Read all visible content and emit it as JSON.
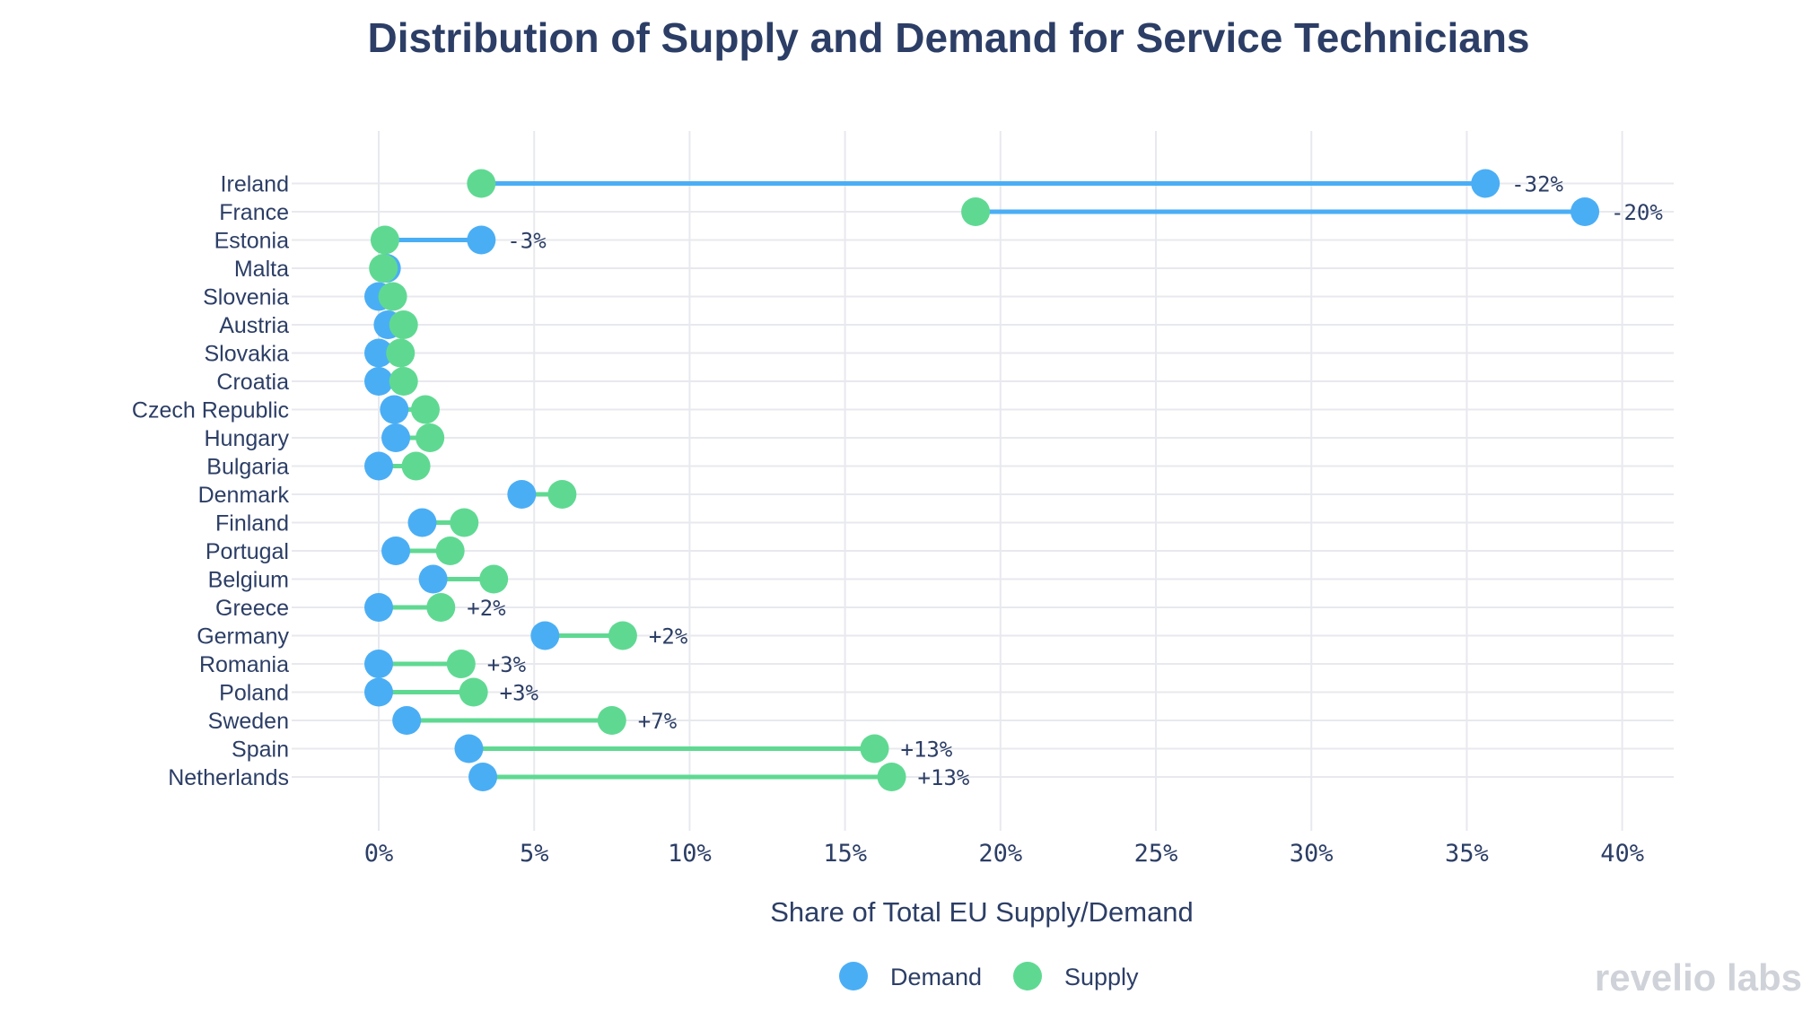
{
  "chart_data": {
    "type": "dumbbell",
    "title": "Distribution of Supply and Demand for Service Technicians",
    "xlabel": "Share of Total EU Supply/Demand",
    "ylabel": "",
    "xlim": [
      -2.5,
      42
    ],
    "xticks": [
      0,
      5,
      10,
      15,
      20,
      25,
      30,
      35,
      40
    ],
    "xtick_labels": [
      "0%",
      "5%",
      "10%",
      "15%",
      "20%",
      "25%",
      "30%",
      "35%",
      "40%"
    ],
    "grid": true,
    "legend_position": "bottom-center",
    "series": [
      {
        "name": "Demand",
        "color": "#4aaef5"
      },
      {
        "name": "Supply",
        "color": "#5fd992"
      }
    ],
    "categories": [
      "Ireland",
      "France",
      "Estonia",
      "Malta",
      "Slovenia",
      "Austria",
      "Slovakia",
      "Croatia",
      "Czech Republic",
      "Hungary",
      "Bulgaria",
      "Denmark",
      "Finland",
      "Portugal",
      "Belgium",
      "Greece",
      "Germany",
      "Romania",
      "Poland",
      "Sweden",
      "Spain",
      "Netherlands"
    ],
    "rows": [
      {
        "country": "Ireland",
        "demand": 35.6,
        "supply": 3.3,
        "annotation": "-32%"
      },
      {
        "country": "France",
        "demand": 38.8,
        "supply": 19.2,
        "annotation": "-20%"
      },
      {
        "country": "Estonia",
        "demand": 3.3,
        "supply": 0.2,
        "annotation": "-3%"
      },
      {
        "country": "Malta",
        "demand": 0.25,
        "supply": 0.15,
        "annotation": ""
      },
      {
        "country": "Slovenia",
        "demand": 0.0,
        "supply": 0.45,
        "annotation": ""
      },
      {
        "country": "Austria",
        "demand": 0.3,
        "supply": 0.8,
        "annotation": ""
      },
      {
        "country": "Slovakia",
        "demand": 0.0,
        "supply": 0.7,
        "annotation": ""
      },
      {
        "country": "Croatia",
        "demand": 0.0,
        "supply": 0.8,
        "annotation": ""
      },
      {
        "country": "Czech Republic",
        "demand": 0.5,
        "supply": 1.5,
        "annotation": ""
      },
      {
        "country": "Hungary",
        "demand": 0.55,
        "supply": 1.65,
        "annotation": ""
      },
      {
        "country": "Bulgaria",
        "demand": 0.0,
        "supply": 1.2,
        "annotation": ""
      },
      {
        "country": "Denmark",
        "demand": 4.6,
        "supply": 5.9,
        "annotation": ""
      },
      {
        "country": "Finland",
        "demand": 1.4,
        "supply": 2.75,
        "annotation": ""
      },
      {
        "country": "Portugal",
        "demand": 0.55,
        "supply": 2.3,
        "annotation": ""
      },
      {
        "country": "Belgium",
        "demand": 1.75,
        "supply": 3.7,
        "annotation": ""
      },
      {
        "country": "Greece",
        "demand": 0.0,
        "supply": 2.0,
        "annotation": "+2%"
      },
      {
        "country": "Germany",
        "demand": 5.35,
        "supply": 7.85,
        "annotation": "+2%"
      },
      {
        "country": "Romania",
        "demand": 0.0,
        "supply": 2.65,
        "annotation": "+3%"
      },
      {
        "country": "Poland",
        "demand": 0.0,
        "supply": 3.05,
        "annotation": "+3%"
      },
      {
        "country": "Sweden",
        "demand": 0.9,
        "supply": 7.5,
        "annotation": "+7%"
      },
      {
        "country": "Spain",
        "demand": 2.9,
        "supply": 15.95,
        "annotation": "+13%"
      },
      {
        "country": "Netherlands",
        "demand": 3.35,
        "supply": 16.5,
        "annotation": "+13%"
      }
    ]
  },
  "legend": {
    "demand_label": "Demand",
    "supply_label": "Supply"
  },
  "branding": {
    "logo_text": "revelio labs"
  }
}
